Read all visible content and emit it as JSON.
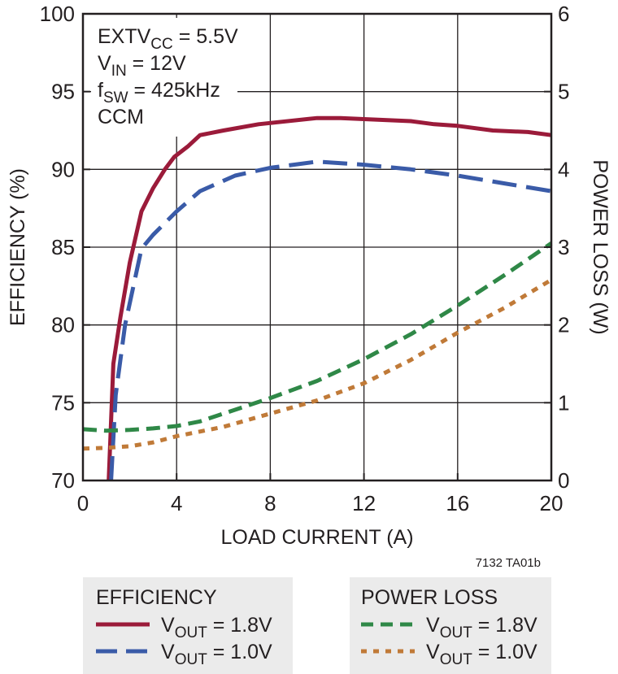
{
  "chart_data": {
    "type": "line",
    "title": "",
    "xlabel": "LOAD CURRENT (A)",
    "ylabel_left": "EFFICIENCY (%)",
    "ylabel_right": "POWER LOSS (W)",
    "xlim": [
      0,
      20
    ],
    "ylim_left": [
      70,
      100
    ],
    "ylim_right": [
      0,
      6
    ],
    "x_ticks": [
      "0",
      "4",
      "8",
      "12",
      "16",
      "20"
    ],
    "y_left_ticks": [
      "70",
      "75",
      "80",
      "85",
      "90",
      "95",
      "100"
    ],
    "y_right_ticks": [
      "0",
      "1",
      "2",
      "3",
      "4",
      "5",
      "6"
    ],
    "grid": true,
    "annotation_lines": [
      {
        "main": "EXTV",
        "sub": "CC",
        "rest": " = 5.5V"
      },
      {
        "main": "V",
        "sub": "IN",
        "rest": " = 12V"
      },
      {
        "main": "f",
        "sub": "SW",
        "rest": " = 425kHz"
      },
      {
        "main": "CCM",
        "sub": "",
        "rest": ""
      }
    ],
    "figure_id": "7132 TA01b",
    "legend": {
      "efficiency_heading": "EFFICIENCY",
      "power_loss_heading": "POWER LOSS"
    },
    "series": [
      {
        "name": "V_OUT = 1.8V",
        "label_main": "V",
        "label_sub": "OUT",
        "label_rest": " = 1.8V",
        "group": "EFFICIENCY",
        "axis": "left",
        "color": "#9b1b3a",
        "style": "solid",
        "x": [
          1.1,
          1.3,
          1.6,
          2.0,
          2.5,
          3.0,
          3.5,
          3.9,
          4.5,
          5.0,
          6.0,
          7.5,
          10.0,
          11.0,
          12.5,
          14.0,
          15.0,
          16.0,
          17.5,
          19.0,
          20.0
        ],
        "values": [
          70.0,
          77.5,
          80.5,
          84.0,
          87.3,
          88.8,
          90.0,
          90.8,
          91.5,
          92.2,
          92.5,
          92.9,
          93.3,
          93.3,
          93.2,
          93.1,
          92.9,
          92.8,
          92.5,
          92.4,
          92.2
        ]
      },
      {
        "name": "V_OUT = 1.0V",
        "label_main": "V",
        "label_sub": "OUT",
        "label_rest": " = 1.0V",
        "group": "EFFICIENCY",
        "axis": "left",
        "color": "#3a5ba8",
        "style": "longdash",
        "x": [
          1.2,
          1.4,
          1.8,
          2.5,
          3.0,
          4.0,
          5.0,
          6.5,
          8.0,
          10.0,
          12.0,
          14.0,
          16.0,
          18.0,
          20.0
        ],
        "values": [
          70.0,
          75.5,
          80.0,
          84.9,
          85.8,
          87.3,
          88.6,
          89.6,
          90.1,
          90.5,
          90.3,
          90.0,
          89.6,
          89.1,
          88.6
        ]
      },
      {
        "name": "V_OUT = 1.8V",
        "label_main": "V",
        "label_sub": "OUT",
        "label_rest": " = 1.8V",
        "group": "POWER LOSS",
        "axis": "right",
        "color": "#2f8847",
        "style": "dashed",
        "x": [
          0,
          1.0,
          2.0,
          3.0,
          4.0,
          5.0,
          6.0,
          7.0,
          8.0,
          10.0,
          12.0,
          14.0,
          16.0,
          18.0,
          20.0
        ],
        "values": [
          0.66,
          0.64,
          0.65,
          0.67,
          0.7,
          0.76,
          0.86,
          0.96,
          1.06,
          1.28,
          1.56,
          1.88,
          2.25,
          2.64,
          3.05
        ]
      },
      {
        "name": "V_OUT = 1.0V",
        "label_main": "V",
        "label_sub": "OUT",
        "label_rest": " = 1.0V",
        "group": "POWER LOSS",
        "axis": "right",
        "color": "#c07a38",
        "style": "dotted",
        "x": [
          0,
          1.0,
          2.0,
          3.0,
          4.0,
          6.0,
          8.0,
          10.0,
          12.0,
          14.0,
          16.0,
          18.0,
          20.0
        ],
        "values": [
          0.41,
          0.42,
          0.44,
          0.49,
          0.57,
          0.69,
          0.86,
          1.03,
          1.25,
          1.55,
          1.9,
          2.22,
          2.58
        ]
      }
    ]
  }
}
